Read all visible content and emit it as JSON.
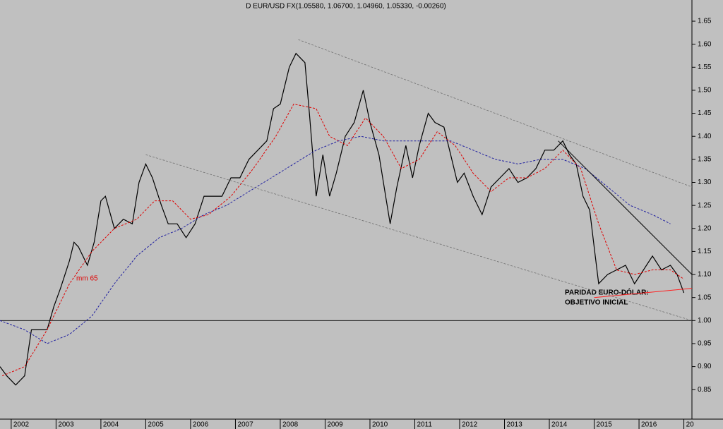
{
  "chart_data": {
    "type": "line",
    "title": "D EUR/USD FX(1.05580, 1.06700, 1.04960, 1.05330, -0.00260)",
    "annotations": [
      "mm 65",
      "PARIDAD EURO-DÓLAR:",
      "OBJETIVO INICIAL"
    ],
    "xlim": [
      2001.75,
      2017.18
    ],
    "xticks": [
      2002,
      2003,
      2004,
      2005,
      2006,
      2007,
      2008,
      2009,
      2010,
      2011,
      2012,
      2013,
      2014,
      2015,
      2016,
      {
        "value": 2017,
        "label": "20"
      }
    ],
    "ylim": [
      0.786,
      1.696
    ],
    "yticks": [
      0.85,
      {
        "value": 0.9,
        "label": "0.90"
      },
      0.95,
      {
        "value": 1,
        "label": "1.00"
      },
      1.05,
      {
        "value": 1.1,
        "label": "1.10"
      },
      1.15,
      {
        "value": 1.2,
        "label": "1.20"
      },
      1.25,
      {
        "value": 1.3,
        "label": "1.30"
      },
      1.35,
      {
        "value": 1.4,
        "label": "1.40"
      },
      1.45,
      {
        "value": 1.5,
        "label": "1.50"
      },
      1.55,
      {
        "value": 1.6,
        "label": "1.60"
      },
      1.65
    ],
    "hline": 1,
    "series": [
      {
        "color": "#000000",
        "width": 1.2,
        "dash": false,
        "x": [
          2001.75,
          2001.9,
          2002.1,
          2002.3,
          2002.45,
          2002.6,
          2002.8,
          2002.95,
          2003.1,
          2003.3,
          2003.4,
          2003.5,
          2003.7,
          2003.85,
          2004.0,
          2004.1,
          2004.3,
          2004.5,
          2004.7,
          2004.85,
          2005.0,
          2005.15,
          2005.35,
          2005.5,
          2005.7,
          2005.9,
          2006.1,
          2006.3,
          2006.5,
          2006.7,
          2006.9,
          2007.1,
          2007.3,
          2007.5,
          2007.7,
          2007.85,
          2008.0,
          2008.2,
          2008.35,
          2008.55,
          2008.65,
          2008.8,
          2008.95,
          2009.1,
          2009.25,
          2009.45,
          2009.65,
          2009.85,
          2010.0,
          2010.2,
          2010.35,
          2010.45,
          2010.6,
          2010.8,
          2010.95,
          2011.1,
          2011.3,
          2011.45,
          2011.65,
          2011.8,
          2011.95,
          2012.1,
          2012.3,
          2012.5,
          2012.7,
          2012.9,
          2013.1,
          2013.3,
          2013.5,
          2013.7,
          2013.9,
          2014.1,
          2014.3,
          2014.45,
          2014.6,
          2014.75,
          2014.9,
          2015.0,
          2015.1,
          2015.3,
          2015.5,
          2015.7,
          2015.9,
          2016.1,
          2016.3,
          2016.5,
          2016.7,
          2016.85,
          2017.0
        ],
        "values": [
          0.9,
          0.88,
          0.86,
          0.88,
          0.98,
          0.98,
          0.98,
          1.03,
          1.07,
          1.13,
          1.17,
          1.16,
          1.12,
          1.17,
          1.26,
          1.27,
          1.2,
          1.22,
          1.21,
          1.3,
          1.34,
          1.31,
          1.25,
          1.21,
          1.21,
          1.18,
          1.21,
          1.27,
          1.27,
          1.27,
          1.31,
          1.31,
          1.35,
          1.37,
          1.39,
          1.46,
          1.47,
          1.55,
          1.58,
          1.56,
          1.45,
          1.27,
          1.36,
          1.27,
          1.32,
          1.4,
          1.43,
          1.5,
          1.43,
          1.36,
          1.27,
          1.21,
          1.29,
          1.38,
          1.31,
          1.38,
          1.45,
          1.43,
          1.42,
          1.36,
          1.3,
          1.32,
          1.27,
          1.23,
          1.29,
          1.31,
          1.33,
          1.3,
          1.31,
          1.33,
          1.37,
          1.37,
          1.39,
          1.36,
          1.34,
          1.27,
          1.24,
          1.16,
          1.08,
          1.1,
          1.11,
          1.12,
          1.08,
          1.11,
          1.14,
          1.11,
          1.12,
          1.1,
          1.06
        ]
      },
      {
        "color": "#e00000",
        "width": 1,
        "dash": true,
        "x": [
          2001.8,
          2002.3,
          2002.8,
          2003.3,
          2003.8,
          2004.3,
          2004.8,
          2005.2,
          2005.6,
          2006.0,
          2006.4,
          2006.9,
          2007.4,
          2007.9,
          2008.3,
          2008.8,
          2009.1,
          2009.5,
          2009.9,
          2010.3,
          2010.7,
          2011.1,
          2011.5,
          2011.9,
          2012.3,
          2012.7,
          2013.1,
          2013.5,
          2013.9,
          2014.3,
          2014.7,
          2015.1,
          2015.5,
          2015.9,
          2016.3,
          2016.7,
          2017.0
        ],
        "values": [
          0.88,
          0.9,
          0.98,
          1.08,
          1.15,
          1.2,
          1.22,
          1.26,
          1.26,
          1.22,
          1.23,
          1.27,
          1.33,
          1.4,
          1.47,
          1.46,
          1.4,
          1.38,
          1.44,
          1.4,
          1.33,
          1.35,
          1.41,
          1.38,
          1.32,
          1.28,
          1.31,
          1.31,
          1.33,
          1.37,
          1.33,
          1.21,
          1.11,
          1.1,
          1.11,
          1.11,
          1.09
        ]
      },
      {
        "color": "#2020a0",
        "width": 1,
        "dash": true,
        "x": [
          2001.75,
          2002.3,
          2002.8,
          2003.3,
          2003.8,
          2004.3,
          2004.8,
          2005.3,
          2005.8,
          2006.3,
          2006.8,
          2007.3,
          2007.8,
          2008.3,
          2008.8,
          2009.3,
          2009.8,
          2010.3,
          2010.8,
          2011.3,
          2011.8,
          2012.3,
          2012.8,
          2013.3,
          2013.8,
          2014.3,
          2014.8,
          2015.3,
          2015.8,
          2016.3,
          2016.7
        ],
        "values": [
          1.0,
          0.98,
          0.95,
          0.97,
          1.01,
          1.08,
          1.14,
          1.18,
          1.2,
          1.23,
          1.25,
          1.28,
          1.31,
          1.34,
          1.37,
          1.39,
          1.4,
          1.39,
          1.39,
          1.39,
          1.39,
          1.37,
          1.35,
          1.34,
          1.35,
          1.35,
          1.33,
          1.29,
          1.25,
          1.23,
          1.21
        ]
      },
      {
        "color": "#707070",
        "width": 0.8,
        "dash": true,
        "x": [
          2008.4,
          2017.18
        ],
        "values": [
          1.61,
          1.29
        ]
      },
      {
        "color": "#707070",
        "width": 0.8,
        "dash": true,
        "x": [
          2005.0,
          2017.18
        ],
        "values": [
          1.36,
          1.0
        ]
      },
      {
        "color": "#000000",
        "width": 1,
        "dash": false,
        "x": [
          2014.2,
          2017.18
        ],
        "values": [
          1.39,
          1.1
        ]
      },
      {
        "color": "#ff2020",
        "width": 1,
        "dash": false,
        "x": [
          2015.0,
          2017.18
        ],
        "values": [
          1.05,
          1.07
        ]
      }
    ]
  }
}
